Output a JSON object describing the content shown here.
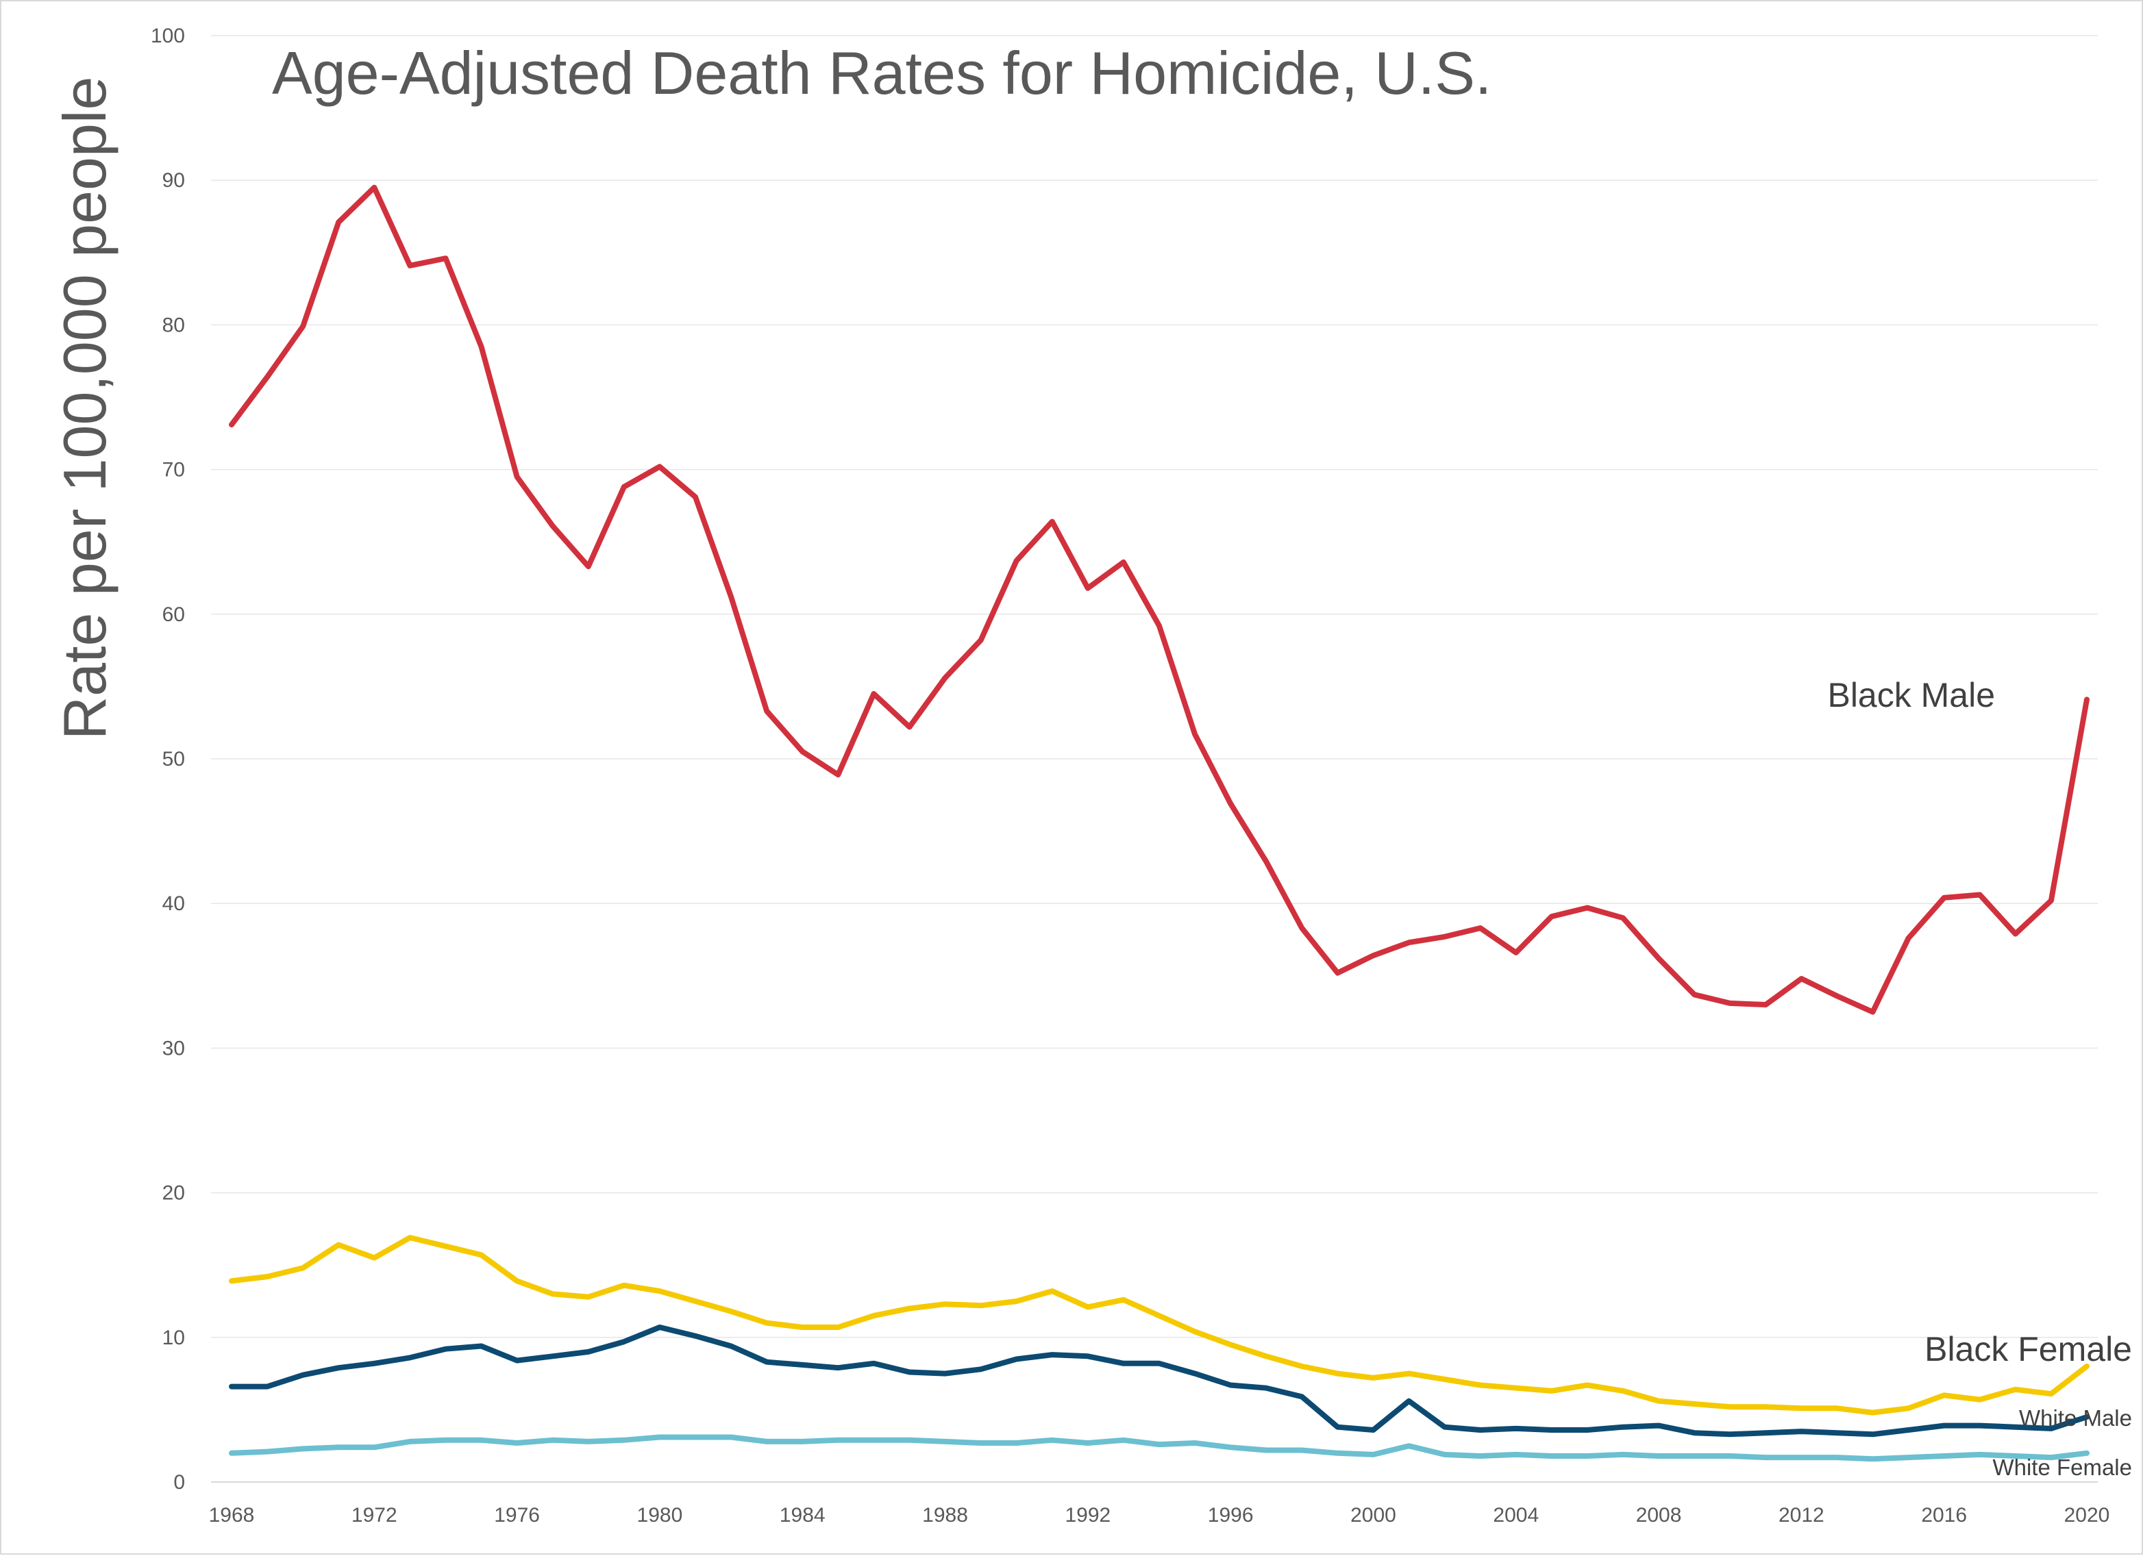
{
  "chart_data": {
    "type": "line",
    "title": "Age-Adjusted Death Rates for Homicide, U.S.",
    "xlabel": "",
    "ylabel": "Rate per 100,000 people",
    "ylim": [
      0,
      100
    ],
    "y_ticks": [
      0,
      10,
      20,
      30,
      40,
      50,
      60,
      70,
      80,
      90,
      100
    ],
    "x_ticks": [
      1968,
      1972,
      1976,
      1980,
      1984,
      1988,
      1992,
      1996,
      2000,
      2004,
      2008,
      2012,
      2016,
      2020
    ],
    "grid": "horizontal",
    "x": [
      1968,
      1969,
      1970,
      1971,
      1972,
      1973,
      1974,
      1975,
      1976,
      1977,
      1978,
      1979,
      1980,
      1981,
      1982,
      1983,
      1984,
      1985,
      1986,
      1987,
      1988,
      1989,
      1990,
      1991,
      1992,
      1993,
      1994,
      1995,
      1996,
      1997,
      1998,
      1999,
      2000,
      2001,
      2002,
      2003,
      2004,
      2005,
      2006,
      2007,
      2008,
      2009,
      2010,
      2011,
      2012,
      2013,
      2014,
      2015,
      2016,
      2017,
      2018,
      2019,
      2020
    ],
    "series": [
      {
        "name": "Black Male",
        "color": "#d1313d",
        "values": [
          73.1,
          76.4,
          79.9,
          87.1,
          89.5,
          84.1,
          84.6,
          78.5,
          69.5,
          66.1,
          63.3,
          68.8,
          70.2,
          68.1,
          61.2,
          53.3,
          50.5,
          48.9,
          54.5,
          52.2,
          55.6,
          58.2,
          63.7,
          66.4,
          61.8,
          63.6,
          59.2,
          51.7,
          46.9,
          42.9,
          38.3,
          35.2,
          36.4,
          37.3,
          37.7,
          38.3,
          36.6,
          39.1,
          39.7,
          39.0,
          36.2,
          33.7,
          33.1,
          33.0,
          34.8,
          33.6,
          32.5,
          37.6,
          40.4,
          40.6,
          37.9,
          40.2,
          54.1
        ]
      },
      {
        "name": "Black Female",
        "color": "#f5c900",
        "values": [
          13.9,
          14.2,
          14.8,
          16.4,
          15.5,
          16.9,
          16.3,
          15.7,
          13.9,
          13.0,
          12.8,
          13.6,
          13.2,
          12.5,
          11.8,
          11.0,
          10.7,
          10.7,
          11.5,
          12.0,
          12.3,
          12.2,
          12.5,
          13.2,
          12.1,
          12.6,
          11.5,
          10.4,
          9.5,
          8.7,
          8.0,
          7.5,
          7.2,
          7.5,
          7.1,
          6.7,
          6.5,
          6.3,
          6.7,
          6.3,
          5.6,
          5.4,
          5.2,
          5.2,
          5.1,
          5.1,
          4.8,
          5.1,
          6.0,
          5.7,
          6.4,
          6.1,
          8.0
        ]
      },
      {
        "name": "White Male",
        "color": "#0c4a72",
        "values": [
          6.6,
          6.6,
          7.4,
          7.9,
          8.2,
          8.6,
          9.2,
          9.4,
          8.4,
          8.7,
          9.0,
          9.7,
          10.7,
          10.1,
          9.4,
          8.3,
          8.1,
          7.9,
          8.2,
          7.6,
          7.5,
          7.8,
          8.5,
          8.8,
          8.7,
          8.2,
          8.2,
          7.5,
          6.7,
          6.5,
          5.9,
          3.8,
          3.6,
          5.6,
          3.8,
          3.6,
          3.7,
          3.6,
          3.6,
          3.8,
          3.9,
          3.4,
          3.3,
          3.4,
          3.5,
          3.4,
          3.3,
          3.6,
          3.9,
          3.9,
          3.8,
          3.7,
          4.5
        ]
      },
      {
        "name": "White Female",
        "color": "#6bbfd0",
        "values": [
          2.0,
          2.1,
          2.3,
          2.4,
          2.4,
          2.8,
          2.9,
          2.9,
          2.7,
          2.9,
          2.8,
          2.9,
          3.1,
          3.1,
          3.1,
          2.8,
          2.8,
          2.9,
          2.9,
          2.9,
          2.8,
          2.7,
          2.7,
          2.9,
          2.7,
          2.9,
          2.6,
          2.7,
          2.4,
          2.2,
          2.2,
          2.0,
          1.9,
          2.5,
          1.9,
          1.8,
          1.9,
          1.8,
          1.8,
          1.9,
          1.8,
          1.8,
          1.8,
          1.7,
          1.7,
          1.7,
          1.6,
          1.7,
          1.8,
          1.9,
          1.8,
          1.7,
          2.0
        ]
      }
    ]
  }
}
